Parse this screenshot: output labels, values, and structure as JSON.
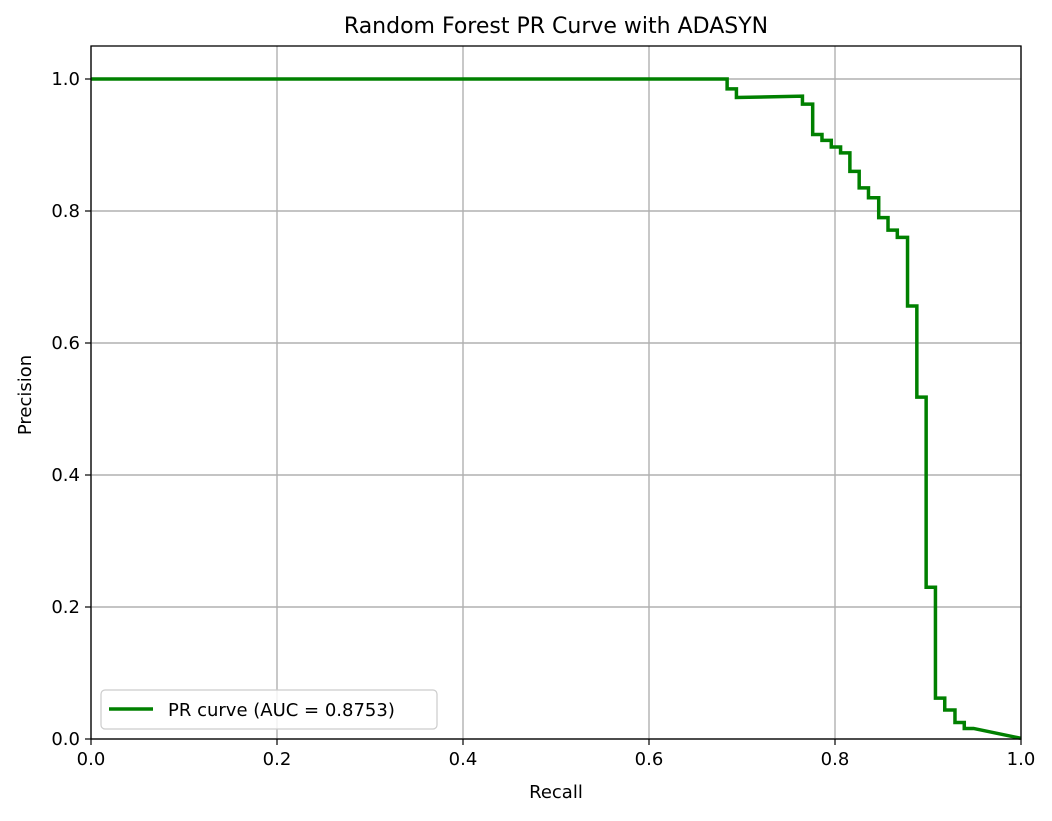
{
  "chart_data": {
    "type": "line",
    "title": "Random Forest PR Curve with ADASYN",
    "xlabel": "Recall",
    "ylabel": "Precision",
    "xlim": [
      0.0,
      1.0
    ],
    "ylim": [
      0.0,
      1.05
    ],
    "xticks": [
      0.0,
      0.2,
      0.4,
      0.6,
      0.8,
      1.0
    ],
    "yticks": [
      0.0,
      0.2,
      0.4,
      0.6,
      0.8,
      1.0
    ],
    "xtick_labels": [
      "0.0",
      "0.2",
      "0.4",
      "0.6",
      "0.8",
      "1.0"
    ],
    "ytick_labels": [
      "0.0",
      "0.2",
      "0.4",
      "0.6",
      "0.8",
      "1.0"
    ],
    "grid": true,
    "legend_position": "lower-left",
    "series": [
      {
        "name": "PR curve (AUC = 0.8753)",
        "color": "#008000",
        "x": [
          0.0,
          0.684,
          0.684,
          0.694,
          0.694,
          0.765,
          0.765,
          0.776,
          0.776,
          0.786,
          0.786,
          0.796,
          0.796,
          0.806,
          0.806,
          0.816,
          0.816,
          0.826,
          0.826,
          0.836,
          0.836,
          0.847,
          0.847,
          0.857,
          0.857,
          0.867,
          0.867,
          0.878,
          0.878,
          0.888,
          0.888,
          0.898,
          0.898,
          0.908,
          0.908,
          0.918,
          0.918,
          0.929,
          0.929,
          0.939,
          0.939,
          0.949,
          1.0
        ],
        "y": [
          1.0,
          1.0,
          0.985,
          0.985,
          0.972,
          0.974,
          0.962,
          0.962,
          0.916,
          0.916,
          0.907,
          0.907,
          0.897,
          0.897,
          0.888,
          0.888,
          0.86,
          0.86,
          0.835,
          0.835,
          0.82,
          0.82,
          0.79,
          0.79,
          0.771,
          0.771,
          0.76,
          0.76,
          0.656,
          0.656,
          0.518,
          0.518,
          0.23,
          0.23,
          0.062,
          0.062,
          0.044,
          0.044,
          0.025,
          0.025,
          0.016,
          0.016,
          0.001
        ]
      }
    ]
  }
}
